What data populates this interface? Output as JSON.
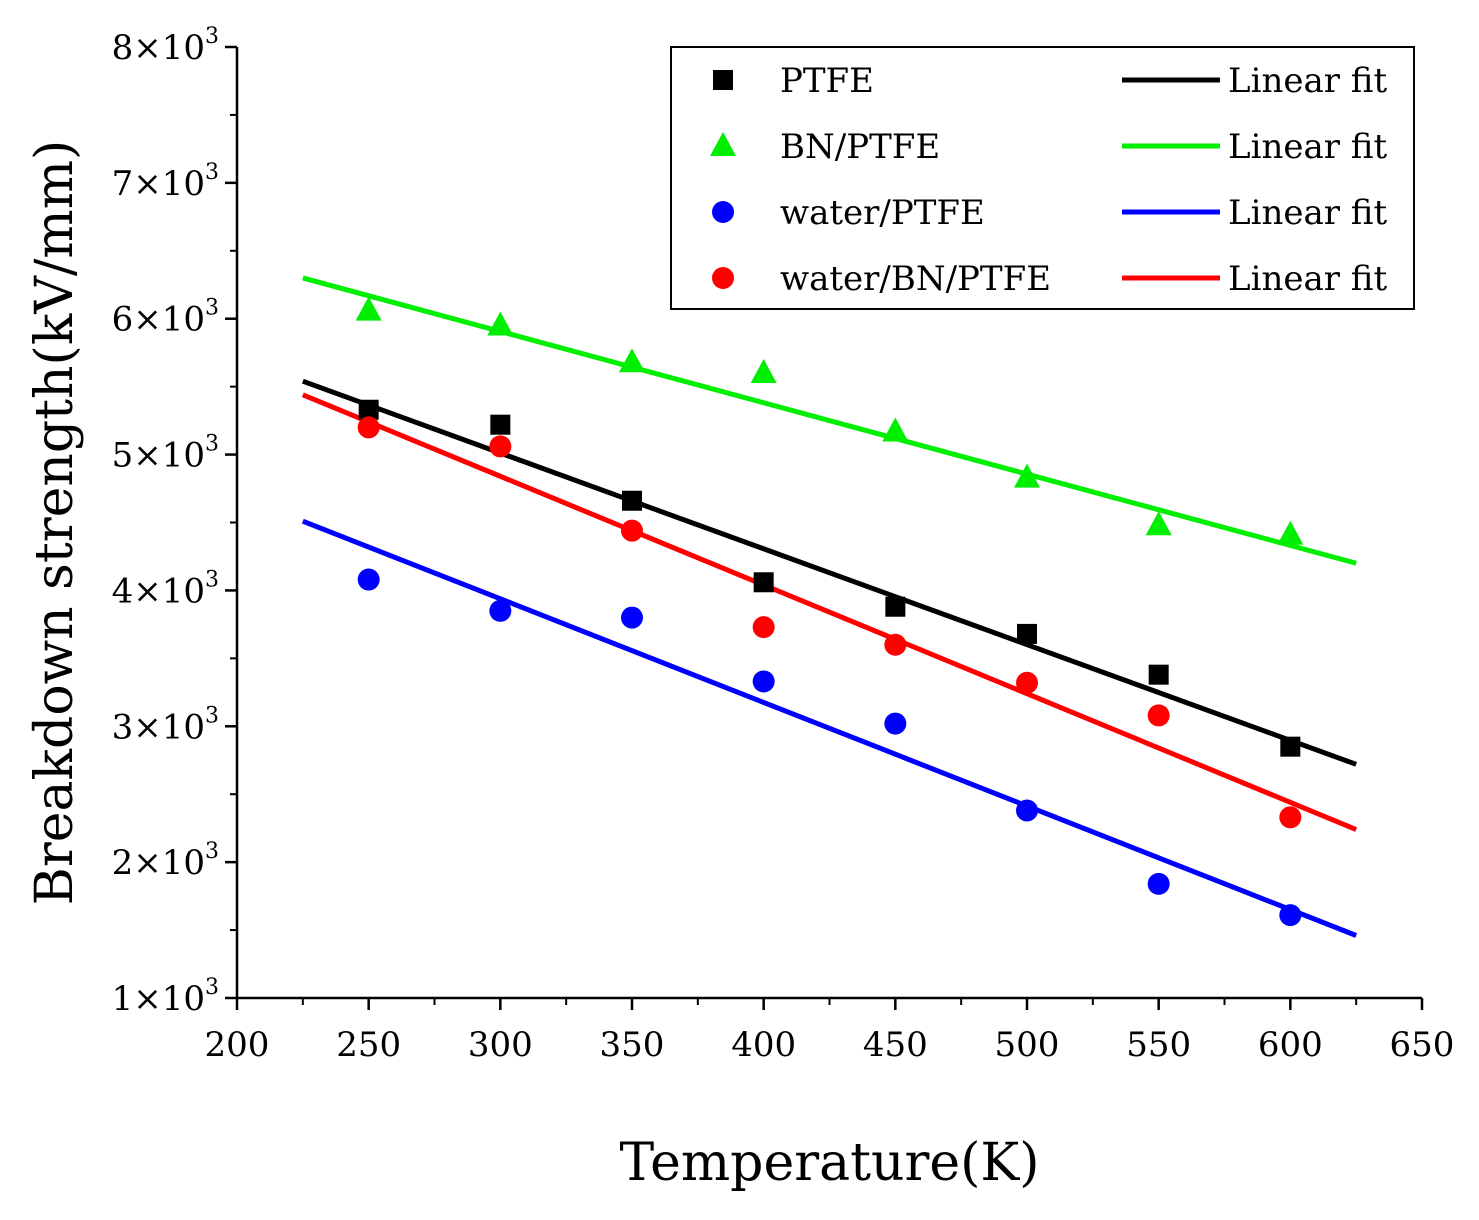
{
  "chart_data": {
    "type": "scatter",
    "title": "",
    "xlabel": "Temperature(K)",
    "ylabel": "Breakdown strength(kV/mm)",
    "xlim": [
      200,
      650
    ],
    "ylim": [
      1000,
      8000
    ],
    "xticks": [
      200,
      250,
      300,
      350,
      400,
      450,
      500,
      550,
      600,
      650
    ],
    "xtick_labels": [
      "200",
      "250",
      "300",
      "350",
      "400",
      "450",
      "500",
      "550",
      "600",
      "650"
    ],
    "yticks": [
      1000,
      2000,
      3000,
      4000,
      5000,
      6000,
      7000,
      8000
    ],
    "ytick_labels": [
      {
        "base": "1×10",
        "exp": "3"
      },
      {
        "base": "2×10",
        "exp": "3"
      },
      {
        "base": "3×10",
        "exp": "3"
      },
      {
        "base": "4×10",
        "exp": "3"
      },
      {
        "base": "5×10",
        "exp": "3"
      },
      {
        "base": "6×10",
        "exp": "3"
      },
      {
        "base": "7×10",
        "exp": "3"
      },
      {
        "base": "8×10",
        "exp": "3"
      }
    ],
    "grid": false,
    "legend_position": "top-right",
    "x": [
      250,
      300,
      350,
      400,
      450,
      500,
      550,
      600
    ],
    "series": [
      {
        "name": "PTFE",
        "marker": "square",
        "color": "#000000",
        "values": [
          5330,
          5220,
          4660,
          4060,
          3880,
          3680,
          3380,
          2850
        ],
        "fit_name": "Linear fit",
        "fit_x": [
          225,
          625
        ],
        "fit_y": [
          5540,
          2720
        ]
      },
      {
        "name": "BN/PTFE",
        "marker": "triangle",
        "color": "#00ee00",
        "values": [
          6060,
          5950,
          5680,
          5600,
          5170,
          4830,
          4480,
          4410
        ],
        "fit_name": "Linear fit",
        "fit_x": [
          225,
          625
        ],
        "fit_y": [
          6300,
          4200
        ]
      },
      {
        "name": "water/PTFE",
        "marker": "circle",
        "color": "#0000ff",
        "values": [
          4080,
          3850,
          3800,
          3330,
          3020,
          2380,
          1840,
          1610
        ],
        "fit_name": "Linear fit",
        "fit_x": [
          225,
          625
        ],
        "fit_y": [
          4510,
          1460
        ]
      },
      {
        "name": "water/BN/PTFE",
        "marker": "circle",
        "color": "#ff0000",
        "values": [
          5200,
          5060,
          4440,
          3730,
          3600,
          3320,
          3080,
          2330
        ],
        "fit_name": "Linear fit",
        "fit_x": [
          225,
          625
        ],
        "fit_y": [
          5440,
          2240
        ]
      }
    ]
  }
}
